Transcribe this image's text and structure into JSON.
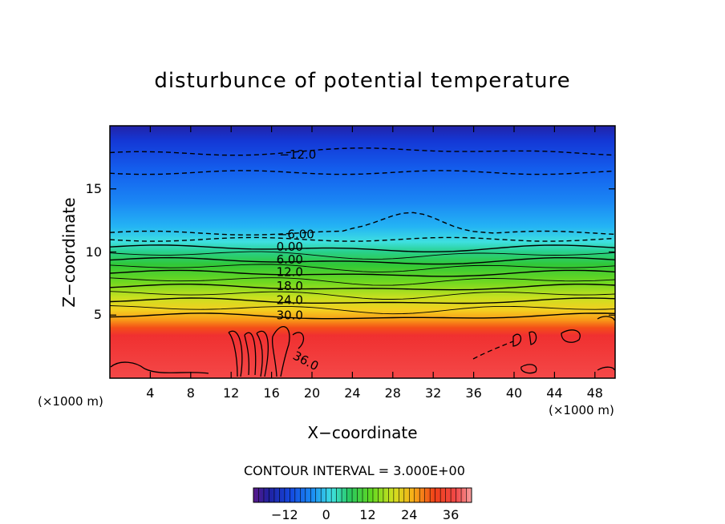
{
  "chart_data": {
    "type": "contour",
    "title": "disturbunce of potential temperature",
    "xlabel": "X−coordinate",
    "ylabel": "Z−coordinate",
    "x_unit": "(×1000 m)",
    "y_unit": "(×1000 m)",
    "xlim": [
      0,
      50
    ],
    "ylim": [
      0,
      20
    ],
    "x_ticks": [
      4,
      8,
      12,
      16,
      20,
      24,
      28,
      32,
      36,
      40,
      44,
      48
    ],
    "y_ticks": [
      5,
      10,
      15
    ],
    "contour_interval_text": "CONTOUR INTERVAL = 3.000E+00",
    "contour_interval": 3.0,
    "contour_line_labels": [
      "−12.0",
      "−6.00",
      "0.00",
      "6.00",
      "12.0",
      "18.0",
      "24.0",
      "30.0",
      "36.0"
    ],
    "contour_levels_approx_height": [
      {
        "value": -12,
        "z": 17.8
      },
      {
        "value": -9,
        "z": 16.3
      },
      {
        "value": -6,
        "z": 11.5
      },
      {
        "value": -3,
        "z": 11.0
      },
      {
        "value": 0,
        "z": 10.4
      },
      {
        "value": 6,
        "z": 9.4
      },
      {
        "value": 12,
        "z": 8.4
      },
      {
        "value": 18,
        "z": 7.3
      },
      {
        "value": 24,
        "z": 6.2
      },
      {
        "value": 30,
        "z": 5.0
      },
      {
        "value": 36,
        "z": 1.5
      }
    ],
    "colorbar": {
      "ticks": [
        "−12",
        "0",
        "12",
        "24",
        "36"
      ],
      "tick_values": [
        -12,
        0,
        12,
        24,
        36
      ],
      "range": [
        -21,
        42
      ]
    }
  }
}
